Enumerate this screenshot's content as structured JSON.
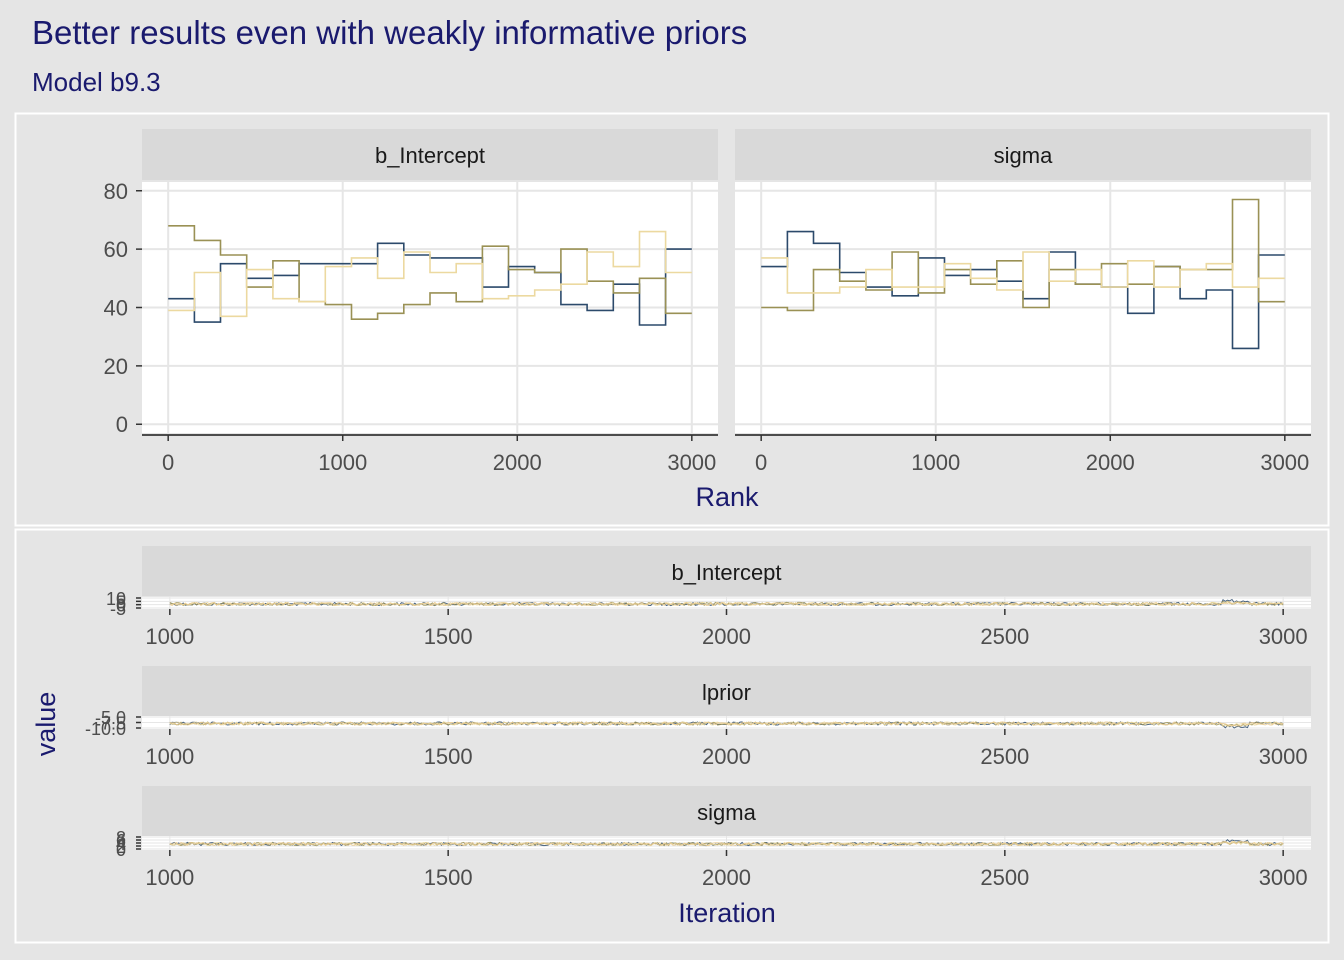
{
  "title": "Better results even with weakly informative priors",
  "subtitle": "Model b9.3",
  "colors": {
    "background": "#e5e5e5",
    "strip": "#d9d9d9",
    "panel": "#ffffff",
    "text_accent": "#1a1a6e",
    "chain1": "#2c4a6b",
    "chain2": "#9a9155",
    "chain3": "#ecd9a0",
    "chain4": "#e8c98e"
  },
  "chart_data": [
    {
      "type": "line",
      "subtype": "rank-histogram (step)",
      "xlabel": "Rank",
      "ylabel": "",
      "xlim": [
        -150,
        3150
      ],
      "ylim": [
        -3,
        83
      ],
      "x_ticks": [
        0,
        1000,
        2000,
        3000
      ],
      "y_ticks": [
        0,
        20,
        40,
        60,
        80
      ],
      "bin_edges": [
        0,
        150,
        300,
        450,
        600,
        750,
        900,
        1050,
        1200,
        1350,
        1500,
        1650,
        1800,
        1950,
        2100,
        2250,
        2400,
        2550,
        2700,
        2850,
        3000
      ],
      "grid": true,
      "panels": [
        {
          "strip": "b_Intercept",
          "series": [
            {
              "color": "#2c4a6b",
              "values": [
                43,
                35,
                55,
                50,
                51,
                55,
                55,
                55,
                62,
                58,
                57,
                57,
                47,
                54,
                52,
                41,
                39,
                48,
                34,
                60
              ]
            },
            {
              "color": "#9a9155",
              "values": [
                68,
                63,
                58,
                47,
                56,
                42,
                41,
                36,
                38,
                41,
                45,
                42,
                61,
                53,
                52,
                60,
                49,
                45,
                50,
                38
              ]
            },
            {
              "color": "#ecd9a0",
              "values": [
                39,
                52,
                37,
                53,
                43,
                42,
                54,
                57,
                50,
                59,
                52,
                55,
                43,
                44,
                46,
                48,
                59,
                54,
                66,
                52
              ]
            }
          ]
        },
        {
          "strip": "sigma",
          "series": [
            {
              "color": "#2c4a6b",
              "values": [
                54,
                66,
                62,
                52,
                47,
                44,
                57,
                51,
                53,
                49,
                43,
                59,
                48,
                47,
                38,
                54,
                43,
                46,
                26,
                58
              ]
            },
            {
              "color": "#9a9155",
              "values": [
                40,
                39,
                53,
                49,
                46,
                59,
                45,
                53,
                48,
                56,
                40,
                53,
                48,
                55,
                48,
                54,
                53,
                53,
                77,
                42
              ]
            },
            {
              "color": "#ecd9a0",
              "values": [
                57,
                45,
                45,
                47,
                53,
                47,
                47,
                55,
                50,
                46,
                59,
                49,
                53,
                47,
                56,
                47,
                53,
                55,
                47,
                50
              ]
            }
          ]
        }
      ]
    },
    {
      "type": "line",
      "subtype": "trace",
      "xlabel": "Iteration",
      "ylabel": "value",
      "xlim": [
        950,
        3050
      ],
      "x_ticks": [
        1000,
        1500,
        2000,
        2500,
        3000
      ],
      "grid": true,
      "panels": [
        {
          "strip": "b_Intercept",
          "y_tick_labels": [
            "10",
            "5",
            "0",
            "-5"
          ],
          "ylim": [
            -6,
            12
          ]
        },
        {
          "strip": "lprior",
          "y_tick_labels": [
            "-5.0",
            "-7.5",
            "-10.0"
          ],
          "ylim": [
            -11,
            -4
          ]
        },
        {
          "strip": "sigma",
          "y_tick_labels": [
            "8",
            "6",
            "4",
            "2",
            "0"
          ],
          "ylim": [
            -1,
            9
          ]
        }
      ]
    }
  ]
}
